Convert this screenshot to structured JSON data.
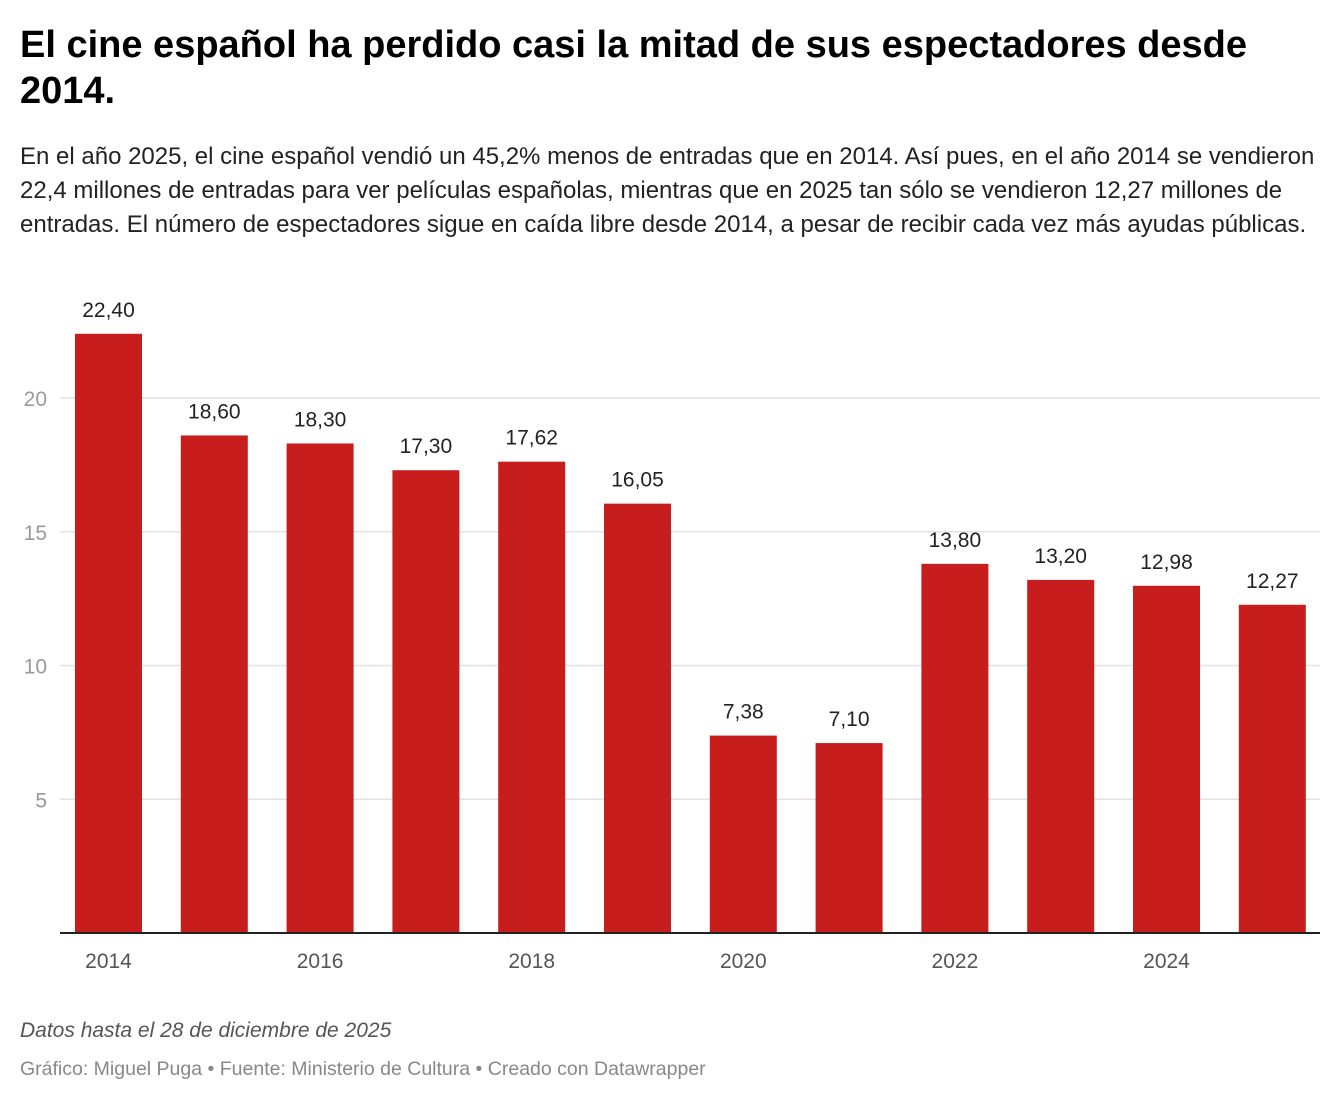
{
  "title": "El cine español ha perdido casi la mitad de sus espectadores desde 2014.",
  "subtitle": "En el año 2025, el cine español vendió un 45,2% menos de entradas que en 2014. Así pues, en el año 2014 se vendieron 22,4 millones de entradas para ver películas españolas, mientras que en 2025 tan sólo se vendieron 12,27 millones de entradas. El número de espectadores sigue en caída libre desde 2014, a pesar de recibir cada vez más ayudas públicas.",
  "notes": "Datos hasta el 28 de diciembre de 2025",
  "footer": "Gráfico: Miguel Puga • Fuente: Ministerio de Cultura • Creado con Datawrapper",
  "chart_data": {
    "type": "bar",
    "categories": [
      "2014",
      "2015",
      "2016",
      "2017",
      "2018",
      "2019",
      "2020",
      "2021",
      "2022",
      "2023",
      "2024",
      "2025"
    ],
    "values": [
      22.4,
      18.6,
      18.3,
      17.3,
      17.62,
      16.05,
      7.38,
      7.1,
      13.8,
      13.2,
      12.98,
      12.27
    ],
    "value_labels": [
      "22,40",
      "18,60",
      "18,30",
      "17,30",
      "17,62",
      "16,05",
      "7,38",
      "7,10",
      "13,80",
      "13,20",
      "12,98",
      "12,27"
    ],
    "x_tick_labels": [
      "2014",
      "2016",
      "2018",
      "2020",
      "2022",
      "2024"
    ],
    "y_ticks": [
      5,
      10,
      15,
      20
    ],
    "ylim": [
      0,
      23
    ],
    "grid": true,
    "bar_color": "#c71e1d"
  }
}
